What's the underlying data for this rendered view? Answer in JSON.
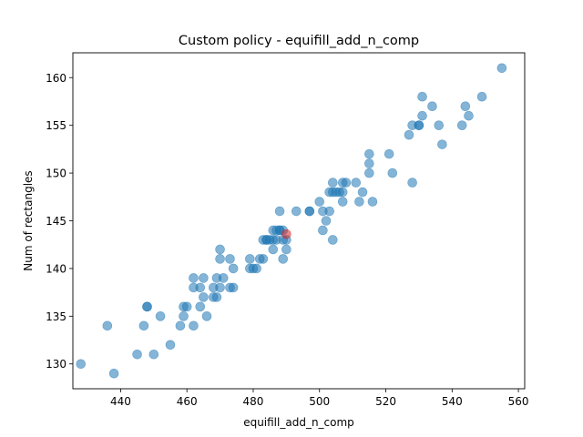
{
  "chart_data": {
    "type": "scatter",
    "title": "Custom policy - equifill_add_n_comp",
    "xlabel": "equifill_add_n_comp",
    "ylabel": "Num of rectangles",
    "xlim": [
      425.6,
      561.9
    ],
    "ylim": [
      127.4,
      162.6
    ],
    "xticks": [
      440,
      460,
      480,
      500,
      520,
      540,
      560
    ],
    "yticks": [
      130,
      135,
      140,
      145,
      150,
      155,
      160
    ],
    "grid": false,
    "point_color": "#1f77b4",
    "highlight_color": "#d62728",
    "series": [
      {
        "points": [
          [
            428,
            130
          ],
          [
            438,
            129
          ],
          [
            436,
            134
          ],
          [
            445,
            131
          ],
          [
            447,
            134
          ],
          [
            448,
            136
          ],
          [
            448,
            136
          ],
          [
            450,
            131
          ],
          [
            452,
            135
          ],
          [
            455,
            132
          ],
          [
            458,
            134
          ],
          [
            459,
            135
          ],
          [
            459,
            136
          ],
          [
            460,
            136
          ],
          [
            462,
            134
          ],
          [
            462,
            138
          ],
          [
            462,
            139
          ],
          [
            464,
            138
          ],
          [
            465,
            137
          ],
          [
            465,
            139
          ],
          [
            466,
            135
          ],
          [
            464,
            136
          ],
          [
            468,
            137
          ],
          [
            468,
            138
          ],
          [
            469,
            139
          ],
          [
            469,
            137
          ],
          [
            470,
            138
          ],
          [
            470,
            141
          ],
          [
            470,
            142
          ],
          [
            471,
            139
          ],
          [
            473,
            138
          ],
          [
            473,
            141
          ],
          [
            474,
            138
          ],
          [
            474,
            140
          ],
          [
            479,
            140
          ],
          [
            479,
            141
          ],
          [
            480,
            140
          ],
          [
            481,
            140
          ],
          [
            482,
            141
          ],
          [
            483,
            141
          ],
          [
            483,
            143
          ],
          [
            484,
            143
          ],
          [
            484,
            143
          ],
          [
            485,
            143
          ],
          [
            486,
            142
          ],
          [
            486,
            143
          ],
          [
            486,
            144
          ],
          [
            487,
            143
          ],
          [
            487,
            144
          ],
          [
            488,
            144
          ],
          [
            488,
            144
          ],
          [
            488,
            146
          ],
          [
            489,
            141
          ],
          [
            489,
            143
          ],
          [
            489,
            144
          ],
          [
            490,
            142
          ],
          [
            490,
            143
          ],
          [
            493,
            146
          ],
          [
            497,
            146
          ],
          [
            497,
            146
          ],
          [
            500,
            147
          ],
          [
            501,
            144
          ],
          [
            501,
            146
          ],
          [
            502,
            145
          ],
          [
            503,
            146
          ],
          [
            503,
            148
          ],
          [
            504,
            143
          ],
          [
            504,
            148
          ],
          [
            504,
            149
          ],
          [
            505,
            148
          ],
          [
            506,
            148
          ],
          [
            507,
            147
          ],
          [
            507,
            148
          ],
          [
            507,
            149
          ],
          [
            508,
            149
          ],
          [
            511,
            149
          ],
          [
            512,
            147
          ],
          [
            513,
            148
          ],
          [
            515,
            150
          ],
          [
            515,
            151
          ],
          [
            515,
            152
          ],
          [
            516,
            147
          ],
          [
            521,
            152
          ],
          [
            522,
            150
          ],
          [
            527,
            154
          ],
          [
            528,
            149
          ],
          [
            528,
            155
          ],
          [
            530,
            155
          ],
          [
            530,
            155
          ],
          [
            531,
            156
          ],
          [
            531,
            158
          ],
          [
            534,
            157
          ],
          [
            536,
            155
          ],
          [
            537,
            153
          ],
          [
            543,
            155
          ],
          [
            544,
            157
          ],
          [
            545,
            156
          ],
          [
            549,
            158
          ],
          [
            555,
            161
          ]
        ]
      },
      {
        "points": [
          [
            490,
            143.6
          ]
        ]
      }
    ]
  }
}
